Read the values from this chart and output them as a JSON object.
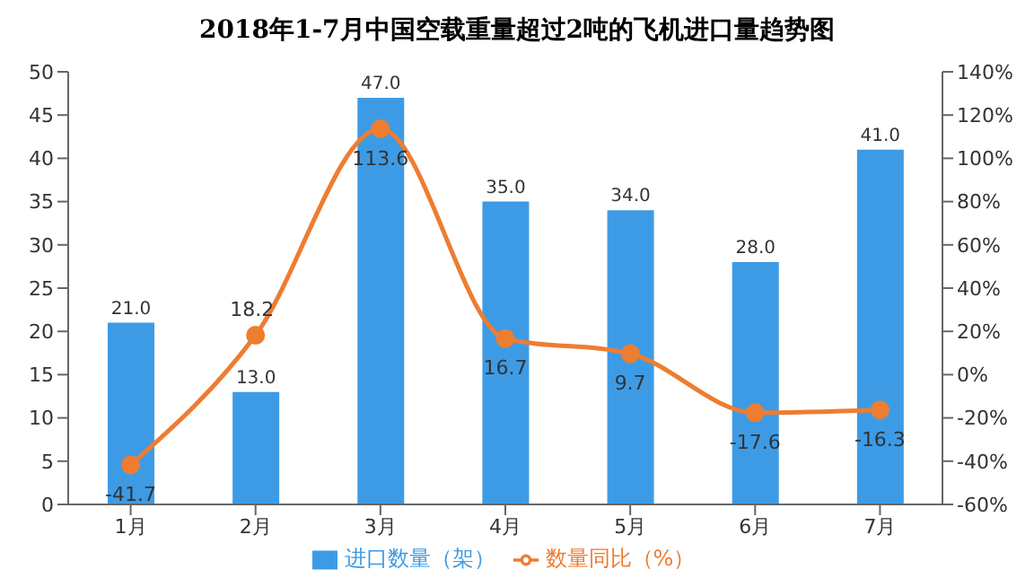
{
  "chart_data": {
    "type": "bar",
    "title": "2018年1-7月中国空载重量超过2吨的飞机进口量趋势图",
    "categories": [
      "1月",
      "2月",
      "3月",
      "4月",
      "5月",
      "6月",
      "7月"
    ],
    "series": [
      {
        "name": "进口数量（架）",
        "color": "#3d9be6",
        "values": [
          21,
          13,
          47,
          35,
          34,
          28,
          41
        ],
        "value_labels": [
          "21.0",
          "13.0",
          "47.0",
          "35.0",
          "34.0",
          "28.0",
          "41.0"
        ]
      },
      {
        "name": "数量同比（%）",
        "type": "line",
        "axis": "y2",
        "color": "#ed7d31",
        "values": [
          -41.7,
          18.2,
          113.6,
          16.7,
          9.7,
          -17.6,
          -16.3
        ],
        "value_labels": [
          "-41.7",
          "18.2",
          "113.6",
          "16.7",
          "9.7",
          "-17.6",
          "-16.3"
        ]
      }
    ],
    "ylim": [
      0,
      50
    ],
    "yticks": [
      0,
      5,
      10,
      15,
      20,
      25,
      30,
      35,
      40,
      45,
      50
    ],
    "y2lim": [
      -60,
      140
    ],
    "y2ticks": [
      {
        "value": -60,
        "label": "-60%"
      },
      {
        "value": -40,
        "label": "-40%"
      },
      {
        "value": -20,
        "label": "-20%"
      },
      {
        "value": 0,
        "label": "0%"
      },
      {
        "value": 20,
        "label": "20%"
      },
      {
        "value": 40,
        "label": "40%"
      },
      {
        "value": 60,
        "label": "60%"
      },
      {
        "value": 80,
        "label": "80%"
      },
      {
        "value": 100,
        "label": "100%"
      },
      {
        "value": 120,
        "label": "120%"
      },
      {
        "value": 140,
        "label": "140%"
      }
    ],
    "legend": "bottom",
    "marker": "circle",
    "grid": false
  }
}
